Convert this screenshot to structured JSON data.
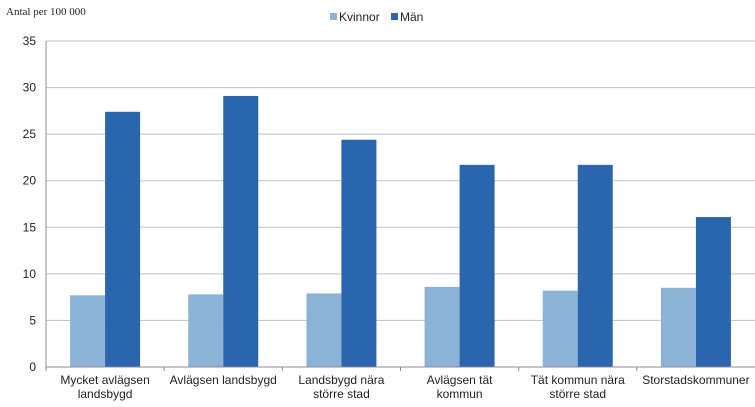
{
  "chart_data": {
    "type": "bar",
    "ylabel": "Antal per 100 000",
    "ylim": [
      0,
      35
    ],
    "yticks": [
      0,
      5,
      10,
      15,
      20,
      25,
      30,
      35
    ],
    "grid": true,
    "legend": "top-center",
    "categories": [
      [
        "Mycket avlägsen",
        "landsbygd"
      ],
      [
        "Avlägsen landsbygd"
      ],
      [
        "Landsbygd nära",
        "större stad"
      ],
      [
        "Avlägsen tät",
        "kommun"
      ],
      [
        "Tät kommun nära",
        "större stad"
      ],
      [
        "Storstadskommuner"
      ]
    ],
    "series": [
      {
        "name": "Kvinnor",
        "color": "#8db2d8",
        "values": [
          7.7,
          7.8,
          7.9,
          8.6,
          8.2,
          8.5
        ]
      },
      {
        "name": "Män",
        "color": "#2a65ad",
        "values": [
          27.4,
          29.1,
          24.4,
          21.7,
          21.7,
          16.1
        ]
      }
    ]
  }
}
